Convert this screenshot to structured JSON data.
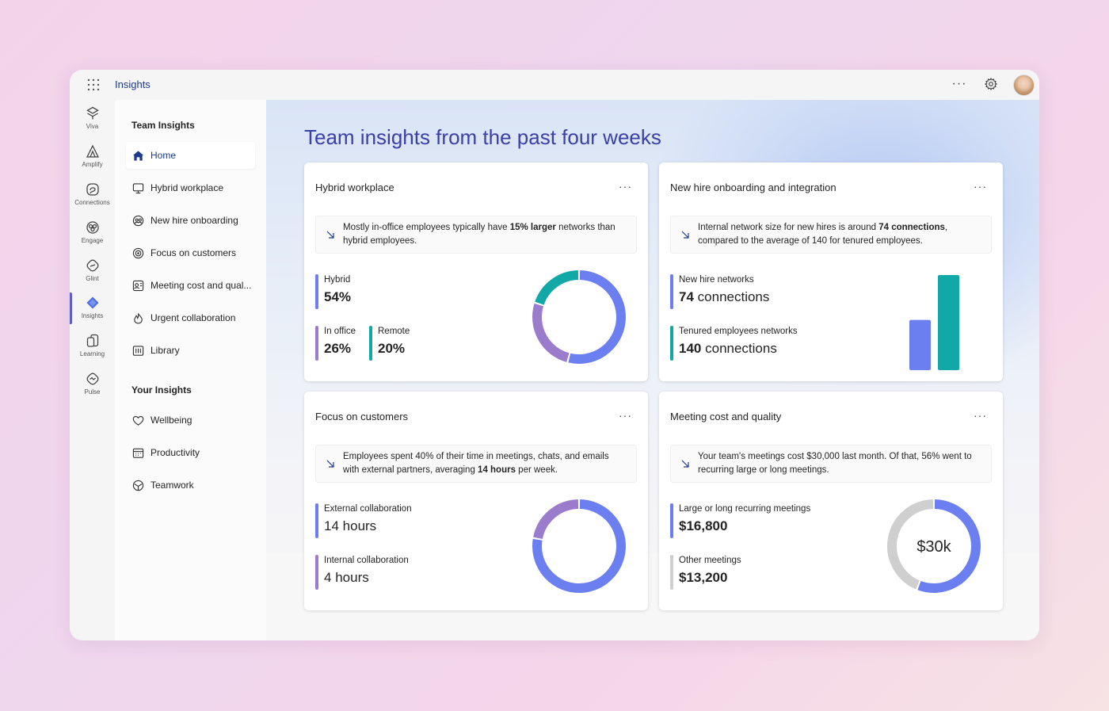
{
  "app": {
    "title": "Insights"
  },
  "rail": {
    "items": [
      {
        "label": "Viva",
        "icon": "viva-icon"
      },
      {
        "label": "Amplify",
        "icon": "amplify-icon"
      },
      {
        "label": "Connections",
        "icon": "connections-icon"
      },
      {
        "label": "Engage",
        "icon": "engage-icon"
      },
      {
        "label": "Glint",
        "icon": "glint-icon"
      },
      {
        "label": "Insights",
        "icon": "insights-icon",
        "active": true
      },
      {
        "label": "Learning",
        "icon": "learning-icon"
      },
      {
        "label": "Pulse",
        "icon": "pulse-icon"
      }
    ]
  },
  "nav": {
    "team_section": "Team Insights",
    "team_items": [
      {
        "label": "Home",
        "icon": "home-icon",
        "active": true
      },
      {
        "label": "Hybrid workplace",
        "icon": "monitor-icon"
      },
      {
        "label": "New hire onboarding",
        "icon": "onboarding-icon"
      },
      {
        "label": "Focus on customers",
        "icon": "target-icon"
      },
      {
        "label": "Meeting cost and qual...",
        "icon": "meeting-icon"
      },
      {
        "label": "Urgent collaboration",
        "icon": "flame-icon"
      },
      {
        "label": "Library",
        "icon": "library-icon"
      }
    ],
    "your_section": "Your Insights",
    "your_items": [
      {
        "label": "Wellbeing",
        "icon": "heart-icon"
      },
      {
        "label": "Productivity",
        "icon": "calendar-icon"
      },
      {
        "label": "Teamwork",
        "icon": "teamwork-icon"
      }
    ]
  },
  "page": {
    "title": "Team insights from the past four weeks"
  },
  "colors": {
    "blue": "#6b7ff0",
    "purple": "#9b7ccc",
    "teal": "#13a8a8",
    "gray": "#cfcfcf",
    "title": "#3b3fa8"
  },
  "cards": {
    "hybrid": {
      "title": "Hybrid workplace",
      "insight_pre": "Mostly in-office employees typically have ",
      "insight_bold": "15% larger",
      "insight_post": " networks than hybrid employees.",
      "metric1_label": "Hybrid",
      "metric1_value": "54%",
      "metric2_label": "In office",
      "metric2_value": "26%",
      "metric3_label": "Remote",
      "metric3_value": "20%",
      "chart": {
        "type": "pie",
        "values": [
          54,
          26,
          20
        ],
        "series": [
          "Hybrid",
          "In office",
          "Remote"
        ]
      }
    },
    "onboarding": {
      "title": "New hire onboarding and integration",
      "insight_pre": "Internal network size for new hires is around ",
      "insight_bold": "74 connections",
      "insight_post": ", compared to the average of 140 for tenured employees.",
      "metric1_label": "New hire networks",
      "metric1_value_num": "74",
      "metric1_value_unit": "connections",
      "metric2_label": "Tenured employees networks",
      "metric2_value_num": "140",
      "metric2_value_unit": "connections",
      "chart": {
        "type": "bar",
        "categories": [
          "New hire networks",
          "Tenured employees networks"
        ],
        "values": [
          74,
          140
        ]
      }
    },
    "customers": {
      "title": "Focus on customers",
      "insight_pre": "Employees spent 40% of their time in meetings, chats, and emails with external partners, averaging ",
      "insight_bold": "14 hours",
      "insight_post": " per week.",
      "metric1_label": "External collaboration",
      "metric1_value_num": "14",
      "metric1_value_unit": "hours",
      "metric2_label": "Internal collaboration",
      "metric2_value_num": "4",
      "metric2_value_unit": "hours",
      "chart": {
        "type": "pie",
        "values": [
          14,
          4
        ],
        "series": [
          "External collaboration",
          "Internal collaboration"
        ]
      }
    },
    "meetings": {
      "title": "Meeting cost and quality",
      "insight_text": "Your team's meetings cost $30,000 last month. Of that, 56% went to recurring large or long meetings.",
      "metric1_label": "Large or long recurring meetings",
      "metric1_value": "$16,800",
      "metric2_label": "Other meetings",
      "metric2_value": "$13,200",
      "center_label": "$30k",
      "chart": {
        "type": "pie",
        "values": [
          16800,
          13200
        ],
        "series": [
          "Large or long recurring meetings",
          "Other meetings"
        ]
      }
    }
  }
}
